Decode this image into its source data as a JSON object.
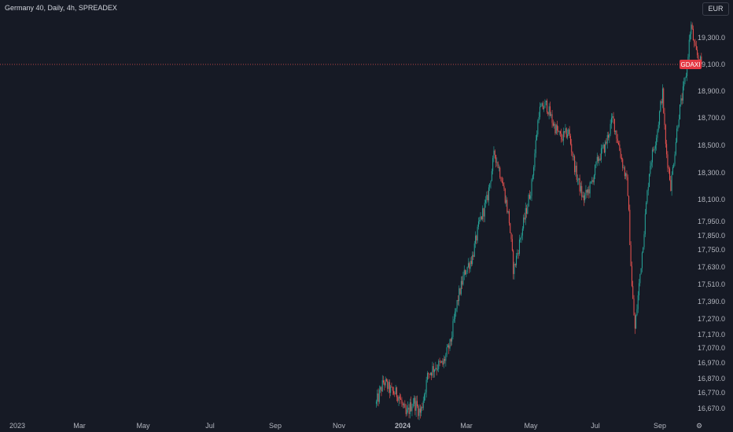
{
  "header": {
    "title": "Germany 40, Daily, 4h, SPREADEX",
    "currency": "EUR"
  },
  "colors": {
    "background": "#161a25",
    "up": "#26a69a",
    "down": "#ef5350",
    "text": "#b2b5be",
    "price_line": "#ef5350",
    "badge": "#e53944"
  },
  "price_badge": "GDAXI",
  "chart_data": {
    "type": "candlestick",
    "title": "Germany 40, Daily, 4h, SPREADEX",
    "x_tick_labels": [
      "2023",
      "Mar",
      "May",
      "Jul",
      "Sep",
      "Nov",
      "2024",
      "Mar",
      "May",
      "Jul",
      "Sep"
    ],
    "y_tick_labels": [
      "19,300.0",
      "19,100.0",
      "18,900.0",
      "18,700.0",
      "18,500.0",
      "18,300.0",
      "18,100.0",
      "17,950.0",
      "17,850.0",
      "17,750.0",
      "17,630.0",
      "17,510.0",
      "17,390.0",
      "17,270.0",
      "17,170.0",
      "17,070.0",
      "16,970.0",
      "16,870.0",
      "16,770.0",
      "16,670.0"
    ],
    "current_price": 19100,
    "series": [
      {
        "x": "2023-12-07",
        "y": 16700
      },
      {
        "x": "2023-12-14",
        "y": 16850
      },
      {
        "x": "2023-12-21",
        "y": 16780
      },
      {
        "x": "2023-12-28",
        "y": 16760
      },
      {
        "x": "2024-01-04",
        "y": 16620
      },
      {
        "x": "2024-01-11",
        "y": 16720
      },
      {
        "x": "2024-01-18",
        "y": 16640
      },
      {
        "x": "2024-01-25",
        "y": 16900
      },
      {
        "x": "2024-02-01",
        "y": 16950
      },
      {
        "x": "2024-02-08",
        "y": 16960
      },
      {
        "x": "2024-02-15",
        "y": 17100
      },
      {
        "x": "2024-02-22",
        "y": 17400
      },
      {
        "x": "2024-02-29",
        "y": 17600
      },
      {
        "x": "2024-03-07",
        "y": 17700
      },
      {
        "x": "2024-03-14",
        "y": 17950
      },
      {
        "x": "2024-03-21",
        "y": 18100
      },
      {
        "x": "2024-03-28",
        "y": 18450
      },
      {
        "x": "2024-04-04",
        "y": 18250
      },
      {
        "x": "2024-04-11",
        "y": 17950
      },
      {
        "x": "2024-04-15",
        "y": 17600
      },
      {
        "x": "2024-04-22",
        "y": 17850
      },
      {
        "x": "2024-05-02",
        "y": 18200
      },
      {
        "x": "2024-05-09",
        "y": 18750
      },
      {
        "x": "2024-05-16",
        "y": 18800
      },
      {
        "x": "2024-05-23",
        "y": 18650
      },
      {
        "x": "2024-05-30",
        "y": 18550
      },
      {
        "x": "2024-06-06",
        "y": 18600
      },
      {
        "x": "2024-06-13",
        "y": 18300
      },
      {
        "x": "2024-06-20",
        "y": 18100
      },
      {
        "x": "2024-06-27",
        "y": 18200
      },
      {
        "x": "2024-07-04",
        "y": 18400
      },
      {
        "x": "2024-07-11",
        "y": 18500
      },
      {
        "x": "2024-07-18",
        "y": 18700
      },
      {
        "x": "2024-07-25",
        "y": 18450
      },
      {
        "x": "2024-08-01",
        "y": 18200
      },
      {
        "x": "2024-08-05",
        "y": 17500
      },
      {
        "x": "2024-08-08",
        "y": 17200
      },
      {
        "x": "2024-08-15",
        "y": 17750
      },
      {
        "x": "2024-08-22",
        "y": 18350
      },
      {
        "x": "2024-08-29",
        "y": 18600
      },
      {
        "x": "2024-09-03",
        "y": 18900
      },
      {
        "x": "2024-09-06",
        "y": 18500
      },
      {
        "x": "2024-09-11",
        "y": 18200
      },
      {
        "x": "2024-09-18",
        "y": 18700
      },
      {
        "x": "2024-09-25",
        "y": 19000
      },
      {
        "x": "2024-09-30",
        "y": 19400
      },
      {
        "x": "2024-10-04",
        "y": 19200
      },
      {
        "x": "2024-10-10",
        "y": 19100
      }
    ],
    "grid": false,
    "legend": "none"
  }
}
